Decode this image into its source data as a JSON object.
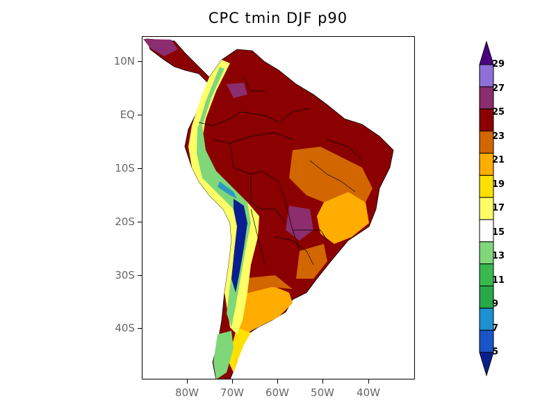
{
  "title": "CPC  tmin  DJF    p90",
  "lat_labels": [
    "10N",
    "EQ",
    "10S",
    "20S",
    "30S",
    "40S"
  ],
  "lon_labels": [
    "80W",
    "70W",
    "60W",
    "50W",
    "40W"
  ],
  "colorbar": {
    "levels": [
      "5",
      "7",
      "9",
      "11",
      "13",
      "15",
      "17",
      "19",
      "21",
      "23",
      "25",
      "27",
      "29"
    ],
    "colors": [
      "#0a1f8f",
      "#1a55c8",
      "#1e8fcf",
      "#27a94a",
      "#39b84e",
      "#7fd77a",
      "#ffffff",
      "#ffff66",
      "#ffe000",
      "#ffad00",
      "#d26600",
      "#8b0000",
      "#8b2d6e",
      "#8f6fd8",
      "#4b0082"
    ]
  },
  "chart_data": {
    "type": "heatmap",
    "title": "CPC  tmin  DJF    p90",
    "variable": "tmin",
    "season": "DJF",
    "statistic": "p90",
    "region": "South America",
    "lon_range": [
      -90,
      -30
    ],
    "lat_range": [
      -50,
      14
    ],
    "lat_ticks": [
      "10N",
      "EQ",
      "10S",
      "20S",
      "30S",
      "40S"
    ],
    "lon_ticks": [
      "80W",
      "70W",
      "60W",
      "50W",
      "40W"
    ],
    "colorbar_levels": [
      5,
      7,
      9,
      11,
      13,
      15,
      17,
      19,
      21,
      23,
      25,
      27,
      29
    ]
  }
}
